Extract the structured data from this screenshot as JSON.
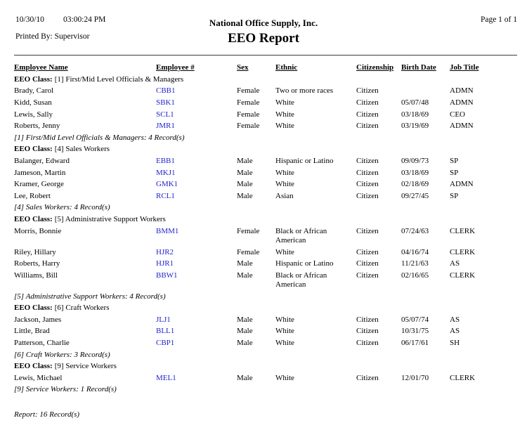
{
  "header": {
    "date": "10/30/10",
    "time": "03:00:24 PM",
    "printed_by": "Printed By: Supervisor",
    "company": "National Office Supply, Inc.",
    "report_title": "EEO Report",
    "page_info": "Page 1 of 1"
  },
  "labels": {
    "eeo_class": "EEO Class:"
  },
  "columns": [
    "Employee Name",
    "Employee #",
    "Sex",
    "Ethnic",
    "Citizenship",
    "Birth Date",
    "Job Title"
  ],
  "colors": {
    "link_blue": "#2323cc",
    "rule": "#3a3a3a"
  },
  "groups": [
    {
      "class_name": "[1] First/Mid Level Officials & Managers",
      "summary": "[1] First/Mid Level Officials & Managers: 4 Record(s)",
      "rows": [
        {
          "name": "Brady, Carol",
          "emp_num": "CBB1",
          "sex": "Female",
          "ethnic": "Two or more races",
          "citizenship": "Citizen",
          "birth_date": "",
          "job_title": "ADMN"
        },
        {
          "name": "Kidd, Susan",
          "emp_num": "SBK1",
          "sex": "Female",
          "ethnic": "White",
          "citizenship": "Citizen",
          "birth_date": "05/07/48",
          "job_title": "ADMN"
        },
        {
          "name": "Lewis, Sally",
          "emp_num": "SCL1",
          "sex": "Female",
          "ethnic": "White",
          "citizenship": "Citizen",
          "birth_date": "03/18/69",
          "job_title": "CEO"
        },
        {
          "name": "Roberts, Jenny",
          "emp_num": "JMR1",
          "sex": "Female",
          "ethnic": "White",
          "citizenship": "Citizen",
          "birth_date": "03/19/69",
          "job_title": "ADMN"
        }
      ]
    },
    {
      "class_name": "[4] Sales Workers",
      "summary": "[4] Sales Workers: 4 Record(s)",
      "rows": [
        {
          "name": "Balanger, Edward",
          "emp_num": "EBB1",
          "sex": "Male",
          "ethnic": "Hispanic or Latino",
          "citizenship": "Citizen",
          "birth_date": "09/09/73",
          "job_title": "SP"
        },
        {
          "name": "Jameson, Martin",
          "emp_num": "MKJ1",
          "sex": "Male",
          "ethnic": "White",
          "citizenship": "Citizen",
          "birth_date": "03/18/69",
          "job_title": "SP"
        },
        {
          "name": "Kramer, George",
          "emp_num": "GMK1",
          "sex": "Male",
          "ethnic": "White",
          "citizenship": "Citizen",
          "birth_date": "02/18/69",
          "job_title": "ADMN"
        },
        {
          "name": "Lee, Robert",
          "emp_num": "RCL1",
          "sex": "Male",
          "ethnic": "Asian",
          "citizenship": "Citizen",
          "birth_date": "09/27/45",
          "job_title": "SP"
        }
      ]
    },
    {
      "class_name": "[5] Administrative Support Workers",
      "summary": "[5] Administrative Support Workers: 4 Record(s)",
      "rows": [
        {
          "name": "Morris, Bonnie",
          "emp_num": "BMM1",
          "sex": "Female",
          "ethnic": "Black or African American",
          "citizenship": "Citizen",
          "birth_date": "07/24/63",
          "job_title": "CLERK"
        },
        {
          "name": "Riley, Hillary",
          "emp_num": "HJR2",
          "sex": "Female",
          "ethnic": "White",
          "citizenship": "Citizen",
          "birth_date": "04/16/74",
          "job_title": "CLERK"
        },
        {
          "name": "Roberts, Harry",
          "emp_num": "HJR1",
          "sex": "Male",
          "ethnic": "Hispanic or Latino",
          "citizenship": "Citizen",
          "birth_date": "11/21/63",
          "job_title": "AS"
        },
        {
          "name": "Williams, Bill",
          "emp_num": "BBW1",
          "sex": "Male",
          "ethnic": "Black or African American",
          "citizenship": "Citizen",
          "birth_date": "02/16/65",
          "job_title": "CLERK"
        }
      ]
    },
    {
      "class_name": "[6] Craft Workers",
      "summary": "[6] Craft Workers: 3 Record(s)",
      "rows": [
        {
          "name": "Jackson, James",
          "emp_num": "JLJ1",
          "sex": "Male",
          "ethnic": "White",
          "citizenship": "Citizen",
          "birth_date": "05/07/74",
          "job_title": "AS"
        },
        {
          "name": "Little, Brad",
          "emp_num": "BLL1",
          "sex": "Male",
          "ethnic": "White",
          "citizenship": "Citizen",
          "birth_date": "10/31/75",
          "job_title": "AS"
        },
        {
          "name": "Patterson, Charlie",
          "emp_num": "CBP1",
          "sex": "Male",
          "ethnic": "White",
          "citizenship": "Citizen",
          "birth_date": "06/17/61",
          "job_title": "SH"
        }
      ]
    },
    {
      "class_name": "[9] Service Workers",
      "summary": "[9] Service Workers: 1 Record(s)",
      "rows": [
        {
          "name": "Lewis, Michael",
          "emp_num": "MEL1",
          "sex": "Male",
          "ethnic": "White",
          "citizenship": "Citizen",
          "birth_date": "12/01/70",
          "job_title": "CLERK"
        }
      ]
    }
  ],
  "report_summary": "Report: 16 Record(s)"
}
